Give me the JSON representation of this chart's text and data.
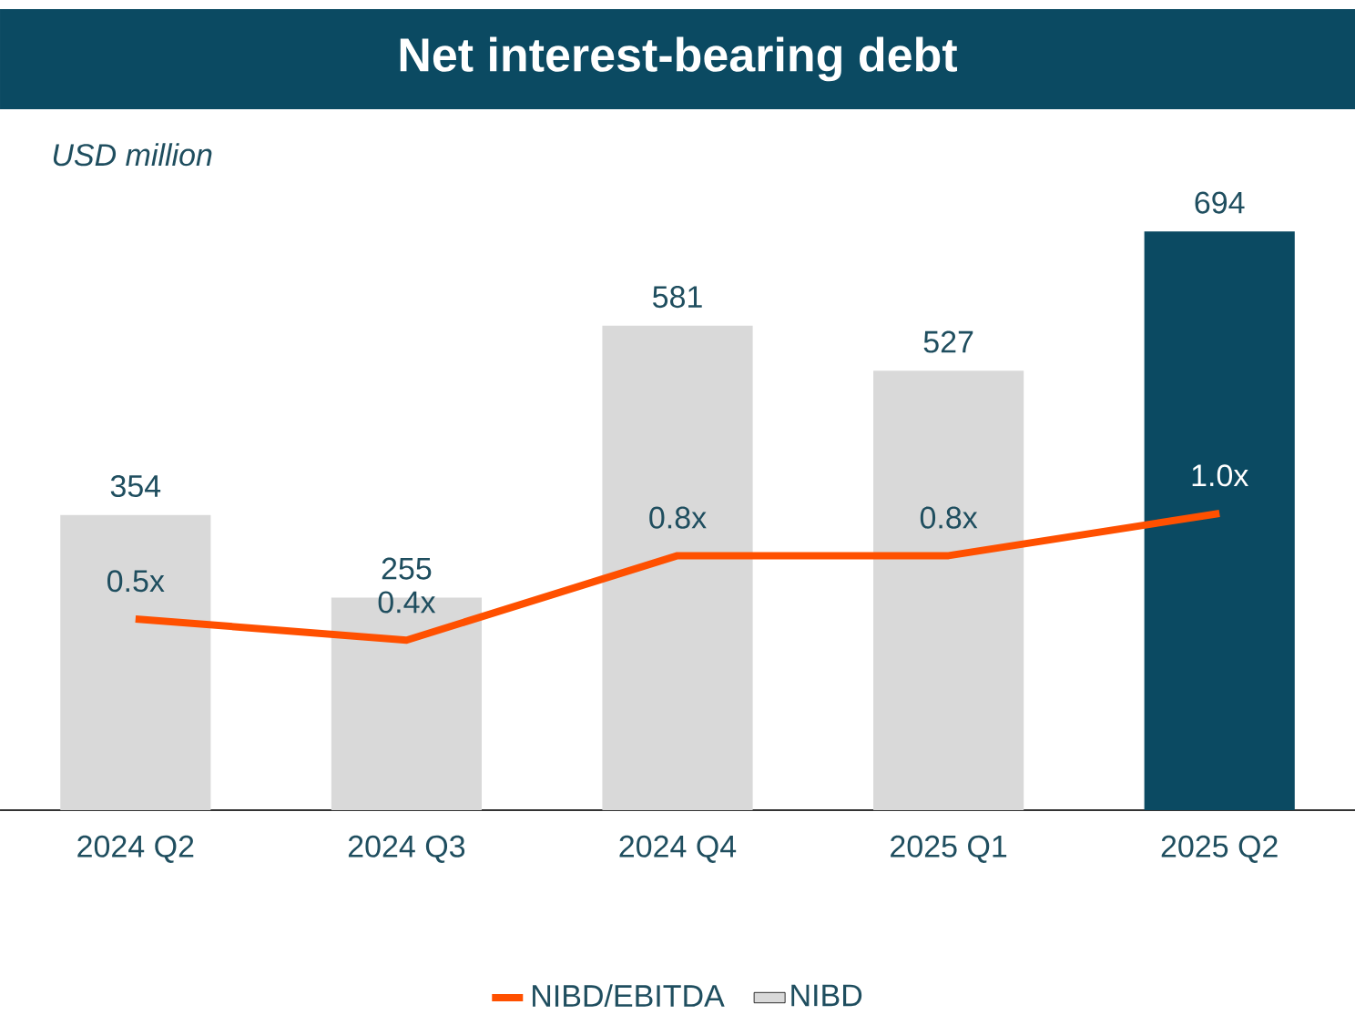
{
  "chart_data": {
    "type": "bar",
    "title": "Net interest-bearing debt",
    "ylabel": "USD million",
    "categories": [
      "2024 Q2",
      "2024 Q3",
      "2024 Q4",
      "2025 Q1",
      "2025 Q2"
    ],
    "series": [
      {
        "name": "NIBD",
        "colors": [
          "#d9d9d9",
          "#d9d9d9",
          "#d9d9d9",
          "#d9d9d9",
          "#0b4a62"
        ],
        "values": [
          354,
          255,
          581,
          527,
          694
        ]
      },
      {
        "name": "NIBD/EBITDA",
        "type": "line",
        "axis": "y2",
        "color": "#ff5000",
        "values": [
          0.5,
          0.4,
          0.8,
          0.8,
          1.0
        ],
        "value_labels": [
          "0.5x",
          "0.4x",
          "0.8x",
          "0.8x",
          "1.0x"
        ]
      }
    ],
    "data_labels": true,
    "tick_labels": "x",
    "legend": "bottom",
    "marker": "none",
    "line_style": "solid"
  }
}
